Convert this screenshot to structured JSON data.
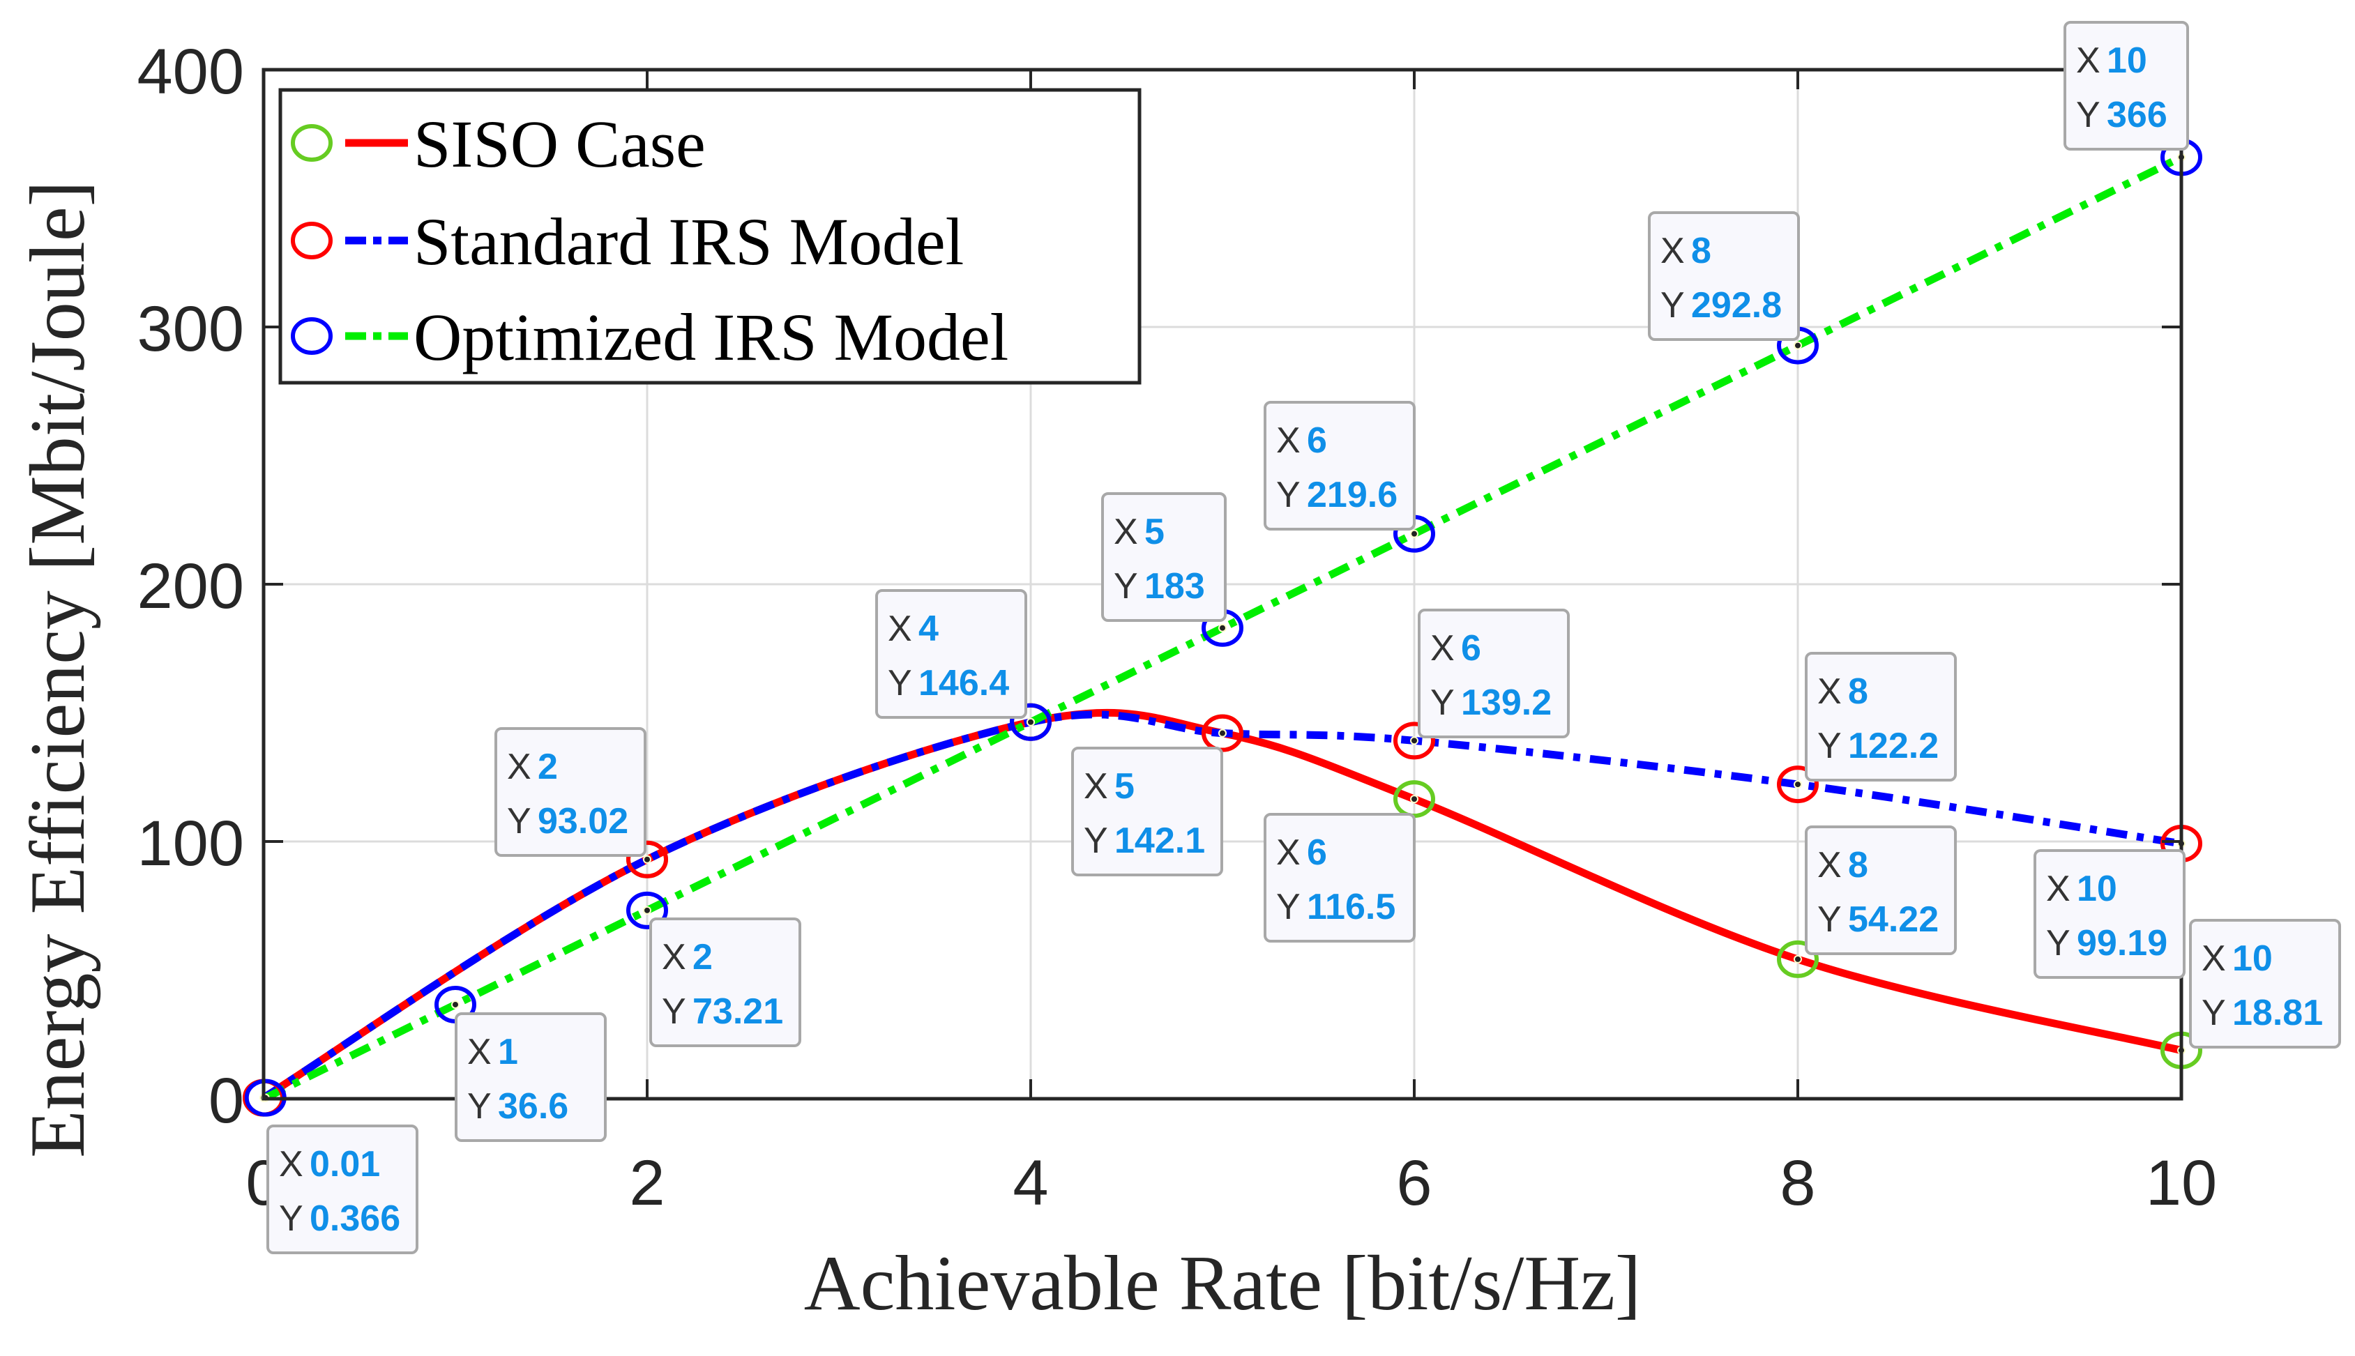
{
  "chart_data": {
    "type": "line",
    "xlabel": "Achievable Rate [bit/s/Hz]",
    "ylabel": "Energy Efficiency [Mbit/Joule]",
    "xlim": [
      0,
      10
    ],
    "ylim": [
      0,
      400
    ],
    "xticks": [
      "0",
      "2",
      "4",
      "6",
      "8",
      "10"
    ],
    "yticks": [
      "0",
      "100",
      "200",
      "300",
      "400"
    ],
    "grid": true,
    "legend_position": "top-left",
    "series": [
      {
        "name": "SISO Case",
        "line_color": "#ff0000",
        "line_style": "solid",
        "marker_color": "#66cc22",
        "x": [
          0,
          2,
          4,
          5,
          6,
          8,
          10
        ],
        "y": [
          0.366,
          93.02,
          146.4,
          142.1,
          116.5,
          54.22,
          18.81
        ]
      },
      {
        "name": "Standard IRS Model",
        "line_color": "#0000ff",
        "line_style": "dash-dot",
        "marker_color": "#ff0000",
        "x": [
          0,
          2,
          4,
          5,
          6,
          8,
          10
        ],
        "y": [
          0.366,
          93.02,
          146.4,
          142.1,
          139.2,
          122.2,
          99.19
        ]
      },
      {
        "name": "Optimized IRS Model",
        "line_color": "#00ee00",
        "line_style": "dash-dot",
        "marker_color": "#0000ff",
        "x": [
          0.01,
          1,
          2,
          4,
          5,
          6,
          8,
          10
        ],
        "y": [
          0.366,
          36.6,
          73.21,
          146.4,
          183,
          219.6,
          292.8,
          366
        ]
      }
    ],
    "datatips": [
      {
        "x": "0.01",
        "y": "0.366"
      },
      {
        "x": "1",
        "y": "36.6"
      },
      {
        "x": "2",
        "y": "73.21"
      },
      {
        "x": "2",
        "y": "93.02"
      },
      {
        "x": "4",
        "y": "146.4"
      },
      {
        "x": "5",
        "y": "183"
      },
      {
        "x": "5",
        "y": "142.1"
      },
      {
        "x": "6",
        "y": "219.6"
      },
      {
        "x": "6",
        "y": "139.2"
      },
      {
        "x": "6",
        "y": "116.5"
      },
      {
        "x": "8",
        "y": "292.8"
      },
      {
        "x": "8",
        "y": "122.2"
      },
      {
        "x": "8",
        "y": "54.22"
      },
      {
        "x": "10",
        "y": "366"
      },
      {
        "x": "10",
        "y": "99.19"
      },
      {
        "x": "10",
        "y": "18.81"
      }
    ],
    "datatip_labels": {
      "x": "X",
      "y": "Y"
    }
  }
}
